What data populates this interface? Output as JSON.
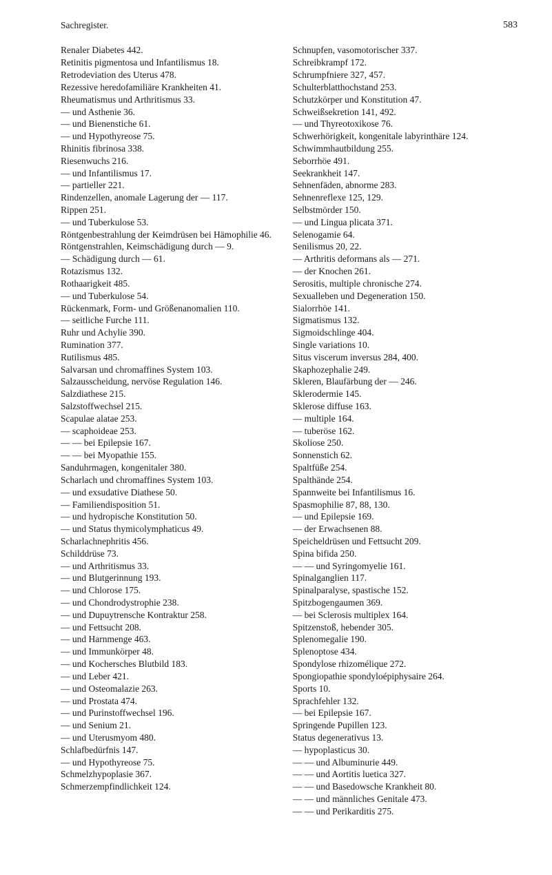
{
  "header": {
    "title": "Sachregister.",
    "page": "583"
  },
  "left_column": [
    {
      "text": "Renaler Diabetes 442.",
      "indent": 0
    },
    {
      "text": "Retinitis pigmentosa und Infantilismus 18.",
      "indent": 0
    },
    {
      "text": "Retrodeviation des Uterus 478.",
      "indent": 0
    },
    {
      "text": "Rezessive heredofamiliäre Krankheiten 41.",
      "indent": 0
    },
    {
      "text": "Rheumatismus und Arthritismus 33.",
      "indent": 0
    },
    {
      "text": "— und Asthenie 36.",
      "indent": 0
    },
    {
      "text": "— und Bienenstiche 61.",
      "indent": 0
    },
    {
      "text": "— und Hypothyreose 75.",
      "indent": 0
    },
    {
      "text": "Rhinitis fibrinosa 338.",
      "indent": 0
    },
    {
      "text": "Riesenwuchs 216.",
      "indent": 0
    },
    {
      "text": "— und Infantilismus 17.",
      "indent": 0
    },
    {
      "text": "— partieller 221.",
      "indent": 0
    },
    {
      "text": "Rindenzellen, anomale Lagerung der — 117.",
      "indent": 0
    },
    {
      "text": "Rippen 251.",
      "indent": 0
    },
    {
      "text": "— und Tuberkulose 53.",
      "indent": 0
    },
    {
      "text": "Röntgenbestrahlung der Keimdrüsen bei Hämophilie 46.",
      "indent": 0
    },
    {
      "text": "Röntgenstrahlen, Keimschädigung durch — 9.",
      "indent": 0
    },
    {
      "text": "— Schädigung durch — 61.",
      "indent": 0
    },
    {
      "text": "Rotazismus 132.",
      "indent": 0
    },
    {
      "text": "Rothaarigkeit 485.",
      "indent": 0
    },
    {
      "text": "— und Tuberkulose 54.",
      "indent": 0
    },
    {
      "text": "Rückenmark, Form- und Größenanomalien 110.",
      "indent": 0
    },
    {
      "text": "— seitliche Furche 111.",
      "indent": 0
    },
    {
      "text": "Ruhr und Achylie 390.",
      "indent": 0
    },
    {
      "text": "Rumination 377.",
      "indent": 0
    },
    {
      "text": "Rutilismus 485.",
      "indent": 0
    },
    {
      "text": " ",
      "indent": 0
    },
    {
      "text": "Salvarsan und chromaffines System 103.",
      "indent": 0
    },
    {
      "text": "Salzausscheidung, nervöse Regulation 146.",
      "indent": 0
    },
    {
      "text": "Salzdiathese 215.",
      "indent": 0
    },
    {
      "text": "Salzstoffwechsel 215.",
      "indent": 0
    },
    {
      "text": "Scapulae alatae 253.",
      "indent": 0
    },
    {
      "text": "— scaphoideae 253.",
      "indent": 0
    },
    {
      "text": "— — bei Epilepsie 167.",
      "indent": 0
    },
    {
      "text": "— — bei Myopathie 155.",
      "indent": 0
    },
    {
      "text": "Sanduhrmagen, kongenitaler 380.",
      "indent": 0
    },
    {
      "text": "Scharlach und chromaffines System 103.",
      "indent": 0
    },
    {
      "text": "— und exsudative Diathese 50.",
      "indent": 0
    },
    {
      "text": "— Familiendisposition 51.",
      "indent": 0
    },
    {
      "text": "— und hydropische Konstitution 50.",
      "indent": 0
    },
    {
      "text": "— und Status thymicolymphaticus 49.",
      "indent": 0
    },
    {
      "text": "Scharlachnephritis 456.",
      "indent": 0
    },
    {
      "text": "Schilddrüse 73.",
      "indent": 0
    },
    {
      "text": "— und Arthritismus 33.",
      "indent": 0
    },
    {
      "text": "— und Blutgerinnung 193.",
      "indent": 0
    },
    {
      "text": "— und Chlorose 175.",
      "indent": 0
    },
    {
      "text": "— und Chondrodystrophie 238.",
      "indent": 0
    },
    {
      "text": "— und Dupuytrensche Kontraktur 258.",
      "indent": 0
    },
    {
      "text": "— und Fettsucht 208.",
      "indent": 0
    },
    {
      "text": "— und Harnmenge 463.",
      "indent": 0
    },
    {
      "text": "— und Immunkörper 48.",
      "indent": 0
    },
    {
      "text": "— und Kochersches Blutbild 183.",
      "indent": 0
    },
    {
      "text": "— und Leber 421.",
      "indent": 0
    },
    {
      "text": "— und Osteomalazie 263.",
      "indent": 0
    },
    {
      "text": "— und Prostata 474.",
      "indent": 0
    },
    {
      "text": "— und Purinstoffwechsel 196.",
      "indent": 0
    },
    {
      "text": "— und Senium 21.",
      "indent": 0
    },
    {
      "text": "— und Uterusmyom 480.",
      "indent": 0
    },
    {
      "text": "Schlafbedürfnis 147.",
      "indent": 0
    },
    {
      "text": "— und Hypothyreose 75.",
      "indent": 0
    },
    {
      "text": "Schmelzhypoplasie 367.",
      "indent": 0
    },
    {
      "text": "Schmerzempfindlichkeit 124.",
      "indent": 0
    }
  ],
  "right_column": [
    {
      "text": "Schnupfen, vasomotorischer 337.",
      "indent": 0
    },
    {
      "text": "Schreibkrampf 172.",
      "indent": 0
    },
    {
      "text": "Schrumpfniere 327, 457.",
      "indent": 0
    },
    {
      "text": "Schulterblatthochstand 253.",
      "indent": 0
    },
    {
      "text": "Schutzkörper und Konstitution 47.",
      "indent": 0
    },
    {
      "text": "Schweißsekretion 141, 492.",
      "indent": 0
    },
    {
      "text": "— und Thyreotoxikose 76.",
      "indent": 0
    },
    {
      "text": "Schwerhörigkeit, kongenitale labyrinthäre 124.",
      "indent": 0
    },
    {
      "text": "Schwimmhautbildung 255.",
      "indent": 0
    },
    {
      "text": "Seborrhöe 491.",
      "indent": 0
    },
    {
      "text": "Seekrankheit 147.",
      "indent": 0
    },
    {
      "text": "Sehnenfäden, abnorme 283.",
      "indent": 0
    },
    {
      "text": "Sehnenreflexe 125, 129.",
      "indent": 0
    },
    {
      "text": "Selbstmörder 150.",
      "indent": 0
    },
    {
      "text": "— und Lingua plicata 371.",
      "indent": 0
    },
    {
      "text": "Selenogamie 64.",
      "indent": 0
    },
    {
      "text": "Senilismus 20, 22.",
      "indent": 0
    },
    {
      "text": "— Arthritis deformans als — 271.",
      "indent": 0
    },
    {
      "text": "— der Knochen 261.",
      "indent": 0
    },
    {
      "text": "Serositis, multiple chronische 274.",
      "indent": 0
    },
    {
      "text": "Sexualleben und Degeneration 150.",
      "indent": 0
    },
    {
      "text": "Sialorrhöe 141.",
      "indent": 0
    },
    {
      "text": "Sigmatismus 132.",
      "indent": 0
    },
    {
      "text": "Sigmoidschlinge 404.",
      "indent": 0
    },
    {
      "text": "Single variations 10.",
      "indent": 0
    },
    {
      "text": "Situs viscerum inversus 284, 400.",
      "indent": 0
    },
    {
      "text": "Skaphozephalie 249.",
      "indent": 0
    },
    {
      "text": "Skleren, Blaufärbung der — 246.",
      "indent": 0
    },
    {
      "text": "Sklerodermie 145.",
      "indent": 0
    },
    {
      "text": "Sklerose diffuse 163.",
      "indent": 0
    },
    {
      "text": "— multiple 164.",
      "indent": 0
    },
    {
      "text": "— tuberöse 162.",
      "indent": 0
    },
    {
      "text": "Skoliose 250.",
      "indent": 0
    },
    {
      "text": "Sonnenstich 62.",
      "indent": 0
    },
    {
      "text": "Spaltfüße 254.",
      "indent": 0
    },
    {
      "text": "Spalthände 254.",
      "indent": 0
    },
    {
      "text": "Spannweite bei Infantilismus 16.",
      "indent": 0
    },
    {
      "text": "Spasmophilie 87, 88, 130.",
      "indent": 0
    },
    {
      "text": "— und Epilepsie 169.",
      "indent": 0
    },
    {
      "text": "— der Erwachsenen 88.",
      "indent": 0
    },
    {
      "text": "Speicheldrüsen und Fettsucht 209.",
      "indent": 0
    },
    {
      "text": "Spina bifida 250.",
      "indent": 0
    },
    {
      "text": "— — und Syringomyelie 161.",
      "indent": 0
    },
    {
      "text": "Spinalganglien 117.",
      "indent": 0
    },
    {
      "text": "Spinalparalyse, spastische 152.",
      "indent": 0
    },
    {
      "text": "Spitzbogengaumen 369.",
      "indent": 0
    },
    {
      "text": "— bei Sclerosis multiplex 164.",
      "indent": 0
    },
    {
      "text": "Spitzenstoß, hebender 305.",
      "indent": 0
    },
    {
      "text": "Splenomegalie 190.",
      "indent": 0
    },
    {
      "text": "Splenoptose 434.",
      "indent": 0
    },
    {
      "text": "Spondylose rhizomélique 272.",
      "indent": 0
    },
    {
      "text": "Spongiopathie spondyloépiphysaire 264.",
      "indent": 0
    },
    {
      "text": "Sports 10.",
      "indent": 0
    },
    {
      "text": "Sprachfehler 132.",
      "indent": 0
    },
    {
      "text": "— bei Epilepsie 167.",
      "indent": 0
    },
    {
      "text": "Springende Pupillen 123.",
      "indent": 0
    },
    {
      "text": "Status degenerativus 13.",
      "indent": 0
    },
    {
      "text": "— hypoplasticus 30.",
      "indent": 0
    },
    {
      "text": "— — und Albuminurie 449.",
      "indent": 0
    },
    {
      "text": "— — und Aortitis luetica 327.",
      "indent": 0
    },
    {
      "text": "— — und Basedowsche Krankheit 80.",
      "indent": 0
    },
    {
      "text": "— — und männliches Genitale 473.",
      "indent": 0
    },
    {
      "text": "— — und Perikarditis 275.",
      "indent": 0
    }
  ]
}
